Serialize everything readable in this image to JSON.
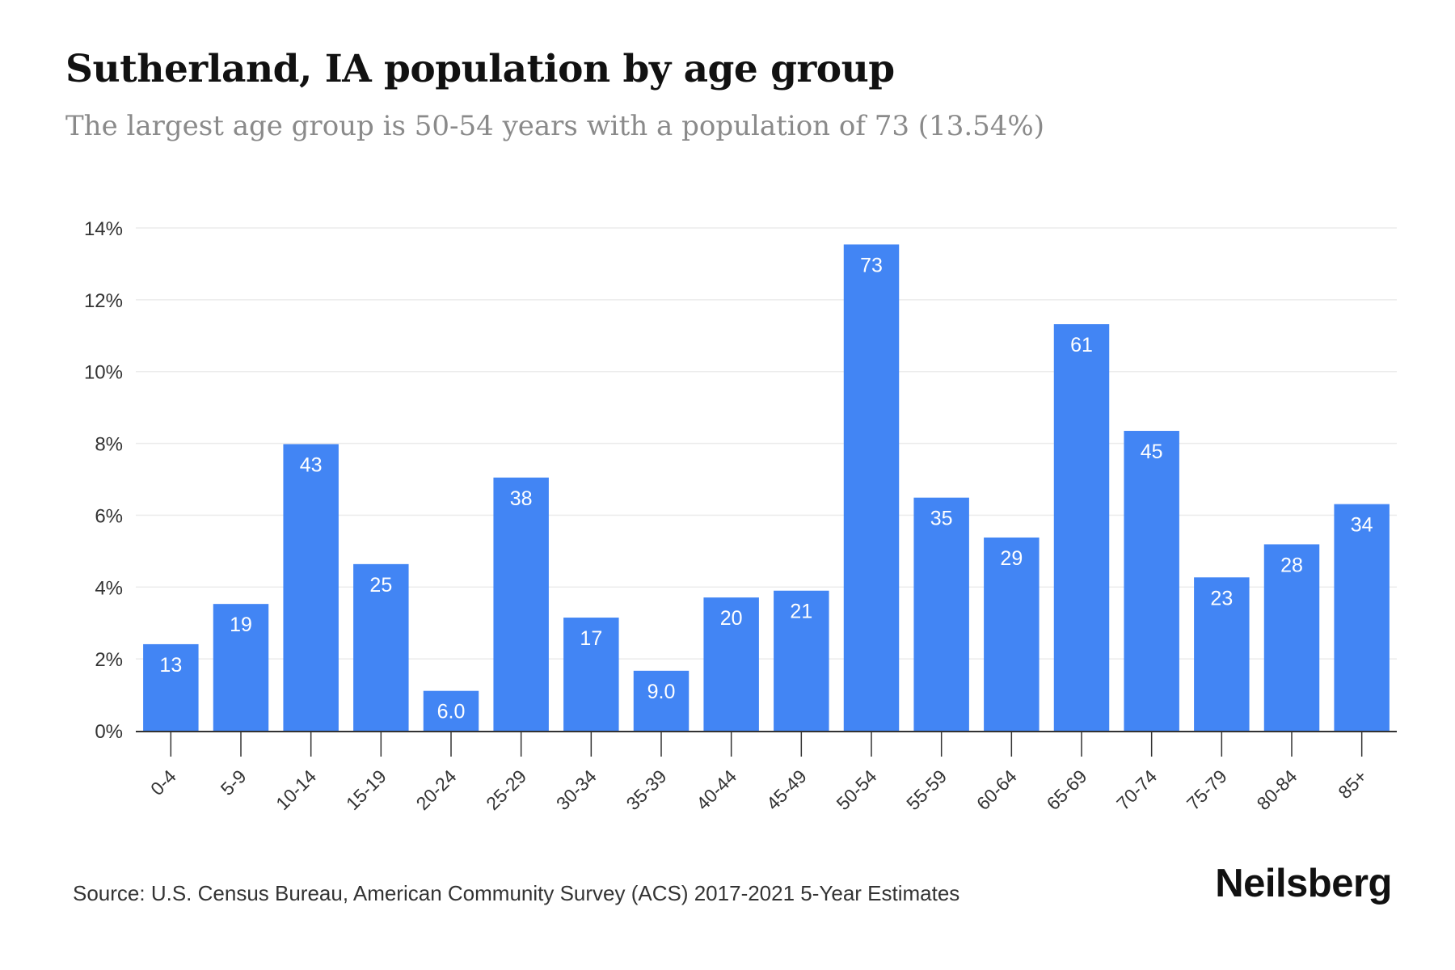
{
  "header": {
    "title": "Sutherland, IA population by age group",
    "subtitle": "The largest age group is 50-54 years with a population of 73 (13.54%)"
  },
  "chart_data": {
    "type": "bar",
    "categories": [
      "0-4",
      "5-9",
      "10-14",
      "15-19",
      "20-24",
      "25-29",
      "30-34",
      "35-39",
      "40-44",
      "45-49",
      "50-54",
      "55-59",
      "60-64",
      "65-69",
      "70-74",
      "75-79",
      "80-84",
      "85+"
    ],
    "values": [
      2.41,
      3.53,
      7.98,
      4.64,
      1.11,
      7.05,
      3.15,
      1.67,
      3.71,
      3.9,
      13.54,
      6.49,
      5.38,
      11.32,
      8.35,
      4.27,
      5.19,
      6.31
    ],
    "data_labels": [
      "13",
      "19",
      "43",
      "25",
      "6.0",
      "38",
      "17",
      "9.0",
      "20",
      "21",
      "73",
      "35",
      "29",
      "61",
      "45",
      "23",
      "28",
      "34"
    ],
    "y_ticks": [
      "0%",
      "2%",
      "4%",
      "6%",
      "8%",
      "10%",
      "12%",
      "14%"
    ],
    "ylim": [
      0,
      14
    ],
    "grid": true,
    "xlabel": "",
    "ylabel": "",
    "bar_color": "#4285f4",
    "label_color": "#ffffff"
  },
  "footer": {
    "source": "Source: U.S. Census Bureau, American Community Survey (ACS) 2017-2021 5-Year Estimates",
    "brand": "Neilsberg"
  }
}
